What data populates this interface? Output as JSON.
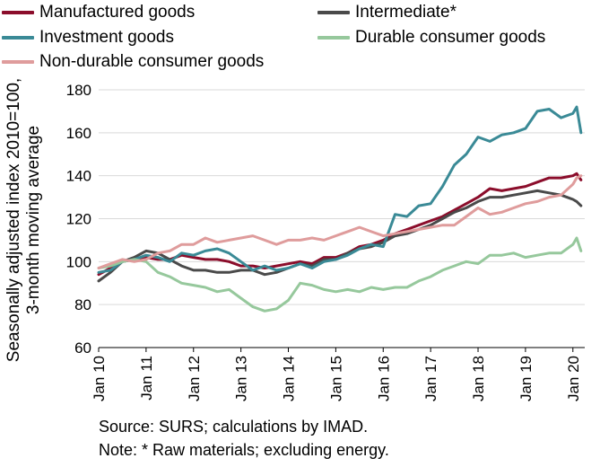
{
  "chart_data": {
    "type": "line",
    "ylabel_lines": [
      "Seasonally adjusted index 2010=100,",
      "3-month moving average"
    ],
    "xlabel": "",
    "ylim": [
      60,
      180
    ],
    "yticks": [
      60,
      80,
      100,
      120,
      140,
      160,
      180
    ],
    "xlim": [
      2010.0,
      2020.25
    ],
    "xticks": [
      {
        "value": 2010,
        "label": "Jan 10"
      },
      {
        "value": 2011,
        "label": "Jan 11"
      },
      {
        "value": 2012,
        "label": "Jan 12"
      },
      {
        "value": 2013,
        "label": "Jan 13"
      },
      {
        "value": 2014,
        "label": "Jan 14"
      },
      {
        "value": 2015,
        "label": "Jan 15"
      },
      {
        "value": 2016,
        "label": "Jan 16"
      },
      {
        "value": 2017,
        "label": "Jan 17"
      },
      {
        "value": 2018,
        "label": "Jan 18"
      },
      {
        "value": 2019,
        "label": "Jan 19"
      },
      {
        "value": 2020,
        "label": "Jan 20"
      }
    ],
    "grid": "horizontal",
    "legend_position": "top",
    "series": [
      {
        "name": "Manufactured goods",
        "color": "#8b0d2b",
        "points": [
          [
            2010.0,
            94
          ],
          [
            2010.25,
            97
          ],
          [
            2010.5,
            100
          ],
          [
            2010.75,
            101
          ],
          [
            2011.0,
            102
          ],
          [
            2011.25,
            101
          ],
          [
            2011.5,
            101
          ],
          [
            2011.75,
            103
          ],
          [
            2012.0,
            102
          ],
          [
            2012.25,
            101
          ],
          [
            2012.5,
            101
          ],
          [
            2012.75,
            100
          ],
          [
            2013.0,
            98
          ],
          [
            2013.25,
            98
          ],
          [
            2013.5,
            97
          ],
          [
            2013.75,
            98
          ],
          [
            2014.0,
            99
          ],
          [
            2014.25,
            100
          ],
          [
            2014.5,
            99
          ],
          [
            2014.75,
            102
          ],
          [
            2015.0,
            102
          ],
          [
            2015.25,
            104
          ],
          [
            2015.5,
            107
          ],
          [
            2015.75,
            108
          ],
          [
            2016.0,
            110
          ],
          [
            2016.25,
            113
          ],
          [
            2016.5,
            115
          ],
          [
            2016.75,
            117
          ],
          [
            2017.0,
            119
          ],
          [
            2017.25,
            121
          ],
          [
            2017.5,
            124
          ],
          [
            2017.75,
            127
          ],
          [
            2018.0,
            130
          ],
          [
            2018.25,
            134
          ],
          [
            2018.5,
            133
          ],
          [
            2018.75,
            134
          ],
          [
            2019.0,
            135
          ],
          [
            2019.25,
            137
          ],
          [
            2019.5,
            139
          ],
          [
            2019.75,
            139
          ],
          [
            2020.0,
            140
          ],
          [
            2020.08,
            141
          ],
          [
            2020.17,
            138
          ]
        ]
      },
      {
        "name": "Intermediate*",
        "color": "#4a4a4a",
        "points": [
          [
            2010.0,
            91
          ],
          [
            2010.25,
            95
          ],
          [
            2010.5,
            100
          ],
          [
            2010.75,
            102
          ],
          [
            2011.0,
            105
          ],
          [
            2011.25,
            104
          ],
          [
            2011.5,
            101
          ],
          [
            2011.75,
            98
          ],
          [
            2012.0,
            96
          ],
          [
            2012.25,
            96
          ],
          [
            2012.5,
            95
          ],
          [
            2012.75,
            95
          ],
          [
            2013.0,
            96
          ],
          [
            2013.25,
            96
          ],
          [
            2013.5,
            94
          ],
          [
            2013.75,
            95
          ],
          [
            2014.0,
            97
          ],
          [
            2014.25,
            99
          ],
          [
            2014.5,
            98
          ],
          [
            2014.75,
            101
          ],
          [
            2015.0,
            101
          ],
          [
            2015.25,
            104
          ],
          [
            2015.5,
            106
          ],
          [
            2015.75,
            107
          ],
          [
            2016.0,
            109
          ],
          [
            2016.25,
            112
          ],
          [
            2016.5,
            113
          ],
          [
            2016.75,
            115
          ],
          [
            2017.0,
            117
          ],
          [
            2017.25,
            120
          ],
          [
            2017.5,
            123
          ],
          [
            2017.75,
            125
          ],
          [
            2018.0,
            128
          ],
          [
            2018.25,
            130
          ],
          [
            2018.5,
            130
          ],
          [
            2018.75,
            131
          ],
          [
            2019.0,
            132
          ],
          [
            2019.25,
            133
          ],
          [
            2019.5,
            132
          ],
          [
            2019.75,
            131
          ],
          [
            2020.0,
            129
          ],
          [
            2020.08,
            128
          ],
          [
            2020.17,
            126
          ]
        ]
      },
      {
        "name": "Investment goods",
        "color": "#3a8a96",
        "points": [
          [
            2010.0,
            95
          ],
          [
            2010.25,
            96
          ],
          [
            2010.5,
            100
          ],
          [
            2010.75,
            101
          ],
          [
            2011.0,
            103
          ],
          [
            2011.25,
            102
          ],
          [
            2011.5,
            100
          ],
          [
            2011.75,
            104
          ],
          [
            2012.0,
            103
          ],
          [
            2012.25,
            105
          ],
          [
            2012.5,
            106
          ],
          [
            2012.75,
            104
          ],
          [
            2013.0,
            100
          ],
          [
            2013.25,
            96
          ],
          [
            2013.5,
            98
          ],
          [
            2013.75,
            96
          ],
          [
            2014.0,
            97
          ],
          [
            2014.25,
            99
          ],
          [
            2014.5,
            97
          ],
          [
            2014.75,
            100
          ],
          [
            2015.0,
            101
          ],
          [
            2015.25,
            103
          ],
          [
            2015.5,
            106
          ],
          [
            2015.75,
            108
          ],
          [
            2016.0,
            107
          ],
          [
            2016.25,
            122
          ],
          [
            2016.5,
            121
          ],
          [
            2016.75,
            126
          ],
          [
            2017.0,
            127
          ],
          [
            2017.25,
            135
          ],
          [
            2017.5,
            145
          ],
          [
            2017.75,
            150
          ],
          [
            2018.0,
            158
          ],
          [
            2018.25,
            156
          ],
          [
            2018.5,
            159
          ],
          [
            2018.75,
            160
          ],
          [
            2019.0,
            162
          ],
          [
            2019.25,
            170
          ],
          [
            2019.5,
            171
          ],
          [
            2019.75,
            167
          ],
          [
            2020.0,
            169
          ],
          [
            2020.08,
            172
          ],
          [
            2020.17,
            160
          ]
        ]
      },
      {
        "name": "Durable consumer goods",
        "color": "#96c89c",
        "points": [
          [
            2010.0,
            97
          ],
          [
            2010.25,
            98
          ],
          [
            2010.5,
            100
          ],
          [
            2010.75,
            101
          ],
          [
            2011.0,
            100
          ],
          [
            2011.25,
            95
          ],
          [
            2011.5,
            93
          ],
          [
            2011.75,
            90
          ],
          [
            2012.0,
            89
          ],
          [
            2012.25,
            88
          ],
          [
            2012.5,
            86
          ],
          [
            2012.75,
            87
          ],
          [
            2013.0,
            83
          ],
          [
            2013.25,
            79
          ],
          [
            2013.5,
            77
          ],
          [
            2013.75,
            78
          ],
          [
            2014.0,
            82
          ],
          [
            2014.25,
            90
          ],
          [
            2014.5,
            89
          ],
          [
            2014.75,
            87
          ],
          [
            2015.0,
            86
          ],
          [
            2015.25,
            87
          ],
          [
            2015.5,
            86
          ],
          [
            2015.75,
            88
          ],
          [
            2016.0,
            87
          ],
          [
            2016.25,
            88
          ],
          [
            2016.5,
            88
          ],
          [
            2016.75,
            91
          ],
          [
            2017.0,
            93
          ],
          [
            2017.25,
            96
          ],
          [
            2017.5,
            98
          ],
          [
            2017.75,
            100
          ],
          [
            2018.0,
            99
          ],
          [
            2018.25,
            103
          ],
          [
            2018.5,
            103
          ],
          [
            2018.75,
            104
          ],
          [
            2019.0,
            102
          ],
          [
            2019.25,
            103
          ],
          [
            2019.5,
            104
          ],
          [
            2019.75,
            104
          ],
          [
            2020.0,
            108
          ],
          [
            2020.08,
            111
          ],
          [
            2020.17,
            105
          ]
        ]
      },
      {
        "name": "Non-durable consumer goods",
        "color": "#df9c9c",
        "points": [
          [
            2010.0,
            97
          ],
          [
            2010.25,
            99
          ],
          [
            2010.5,
            101
          ],
          [
            2010.75,
            100
          ],
          [
            2011.0,
            101
          ],
          [
            2011.25,
            104
          ],
          [
            2011.5,
            105
          ],
          [
            2011.75,
            108
          ],
          [
            2012.0,
            108
          ],
          [
            2012.25,
            111
          ],
          [
            2012.5,
            109
          ],
          [
            2012.75,
            110
          ],
          [
            2013.0,
            111
          ],
          [
            2013.25,
            112
          ],
          [
            2013.5,
            110
          ],
          [
            2013.75,
            108
          ],
          [
            2014.0,
            110
          ],
          [
            2014.25,
            110
          ],
          [
            2014.5,
            111
          ],
          [
            2014.75,
            110
          ],
          [
            2015.0,
            112
          ],
          [
            2015.25,
            114
          ],
          [
            2015.5,
            116
          ],
          [
            2015.75,
            114
          ],
          [
            2016.0,
            112
          ],
          [
            2016.25,
            113
          ],
          [
            2016.5,
            114
          ],
          [
            2016.75,
            115
          ],
          [
            2017.0,
            116
          ],
          [
            2017.25,
            117
          ],
          [
            2017.5,
            117
          ],
          [
            2017.75,
            121
          ],
          [
            2018.0,
            125
          ],
          [
            2018.25,
            122
          ],
          [
            2018.5,
            123
          ],
          [
            2018.75,
            125
          ],
          [
            2019.0,
            127
          ],
          [
            2019.25,
            128
          ],
          [
            2019.5,
            130
          ],
          [
            2019.75,
            131
          ],
          [
            2020.0,
            136
          ],
          [
            2020.08,
            139
          ],
          [
            2020.17,
            140
          ]
        ]
      }
    ]
  },
  "legend": [
    {
      "label": "Manufactured goods",
      "color": "#8b0d2b"
    },
    {
      "label": "Intermediate*",
      "color": "#4a4a4a"
    },
    {
      "label": "Investment goods",
      "color": "#3a8a96"
    },
    {
      "label": "Durable consumer goods",
      "color": "#96c89c"
    },
    {
      "label": "Non-durable consumer goods",
      "color": "#df9c9c"
    }
  ],
  "footnotes": {
    "source": "Source: SURS; calculations by IMAD.",
    "note": "Note: * Raw materials; excluding energy."
  }
}
